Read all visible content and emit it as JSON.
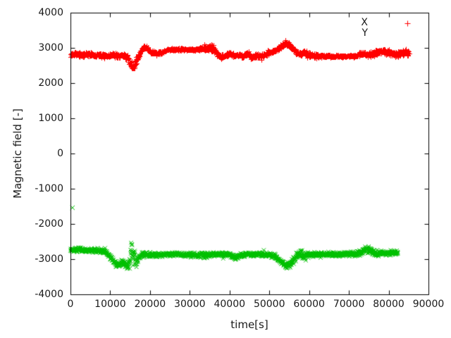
{
  "chart_data": {
    "type": "scatter",
    "title": "",
    "xlabel": "time[s]",
    "ylabel": "Magnetic field [-]",
    "xlim": [
      0,
      90000
    ],
    "ylim": [
      -4000,
      4000
    ],
    "xticks": [
      0,
      10000,
      20000,
      30000,
      40000,
      50000,
      60000,
      70000,
      80000,
      90000
    ],
    "yticks": [
      -4000,
      -3000,
      -2000,
      -1000,
      0,
      1000,
      2000,
      3000,
      4000
    ],
    "grid": false,
    "frame_color": "#000000",
    "text_color": "#1a1a1a",
    "legend_position": "top-right",
    "legend": [
      {
        "label": "X",
        "marker": "plus",
        "color": "#ff0000",
        "sample_shown": true
      },
      {
        "label": "Y",
        "marker": "cross",
        "color": "#00c000",
        "sample_shown": false
      }
    ],
    "series": [
      {
        "name": "X",
        "marker": "plus",
        "color": "#ff0000",
        "band_keypoints": [
          [
            0,
            2810,
            70
          ],
          [
            1500,
            2830,
            65
          ],
          [
            3000,
            2790,
            70
          ],
          [
            4500,
            2830,
            65
          ],
          [
            6000,
            2780,
            70
          ],
          [
            7500,
            2810,
            70
          ],
          [
            9000,
            2760,
            75
          ],
          [
            10500,
            2800,
            70
          ],
          [
            12000,
            2780,
            70
          ],
          [
            13300,
            2800,
            70
          ],
          [
            14300,
            2730,
            85
          ],
          [
            15100,
            2530,
            130
          ],
          [
            15800,
            2450,
            120
          ],
          [
            16400,
            2570,
            140
          ],
          [
            17100,
            2790,
            110
          ],
          [
            17900,
            2940,
            80
          ],
          [
            18600,
            3040,
            65
          ],
          [
            19400,
            2980,
            60
          ],
          [
            20200,
            2880,
            60
          ],
          [
            21500,
            2840,
            60
          ],
          [
            23000,
            2880,
            55
          ],
          [
            24500,
            2950,
            45
          ],
          [
            26000,
            2960,
            40
          ],
          [
            28000,
            2955,
            40
          ],
          [
            30000,
            2960,
            40
          ],
          [
            32000,
            2950,
            45
          ],
          [
            33500,
            2980,
            70
          ],
          [
            34800,
            3010,
            130
          ],
          [
            35800,
            2990,
            110
          ],
          [
            36800,
            2850,
            80
          ],
          [
            38000,
            2740,
            70
          ],
          [
            39200,
            2800,
            70
          ],
          [
            40200,
            2840,
            65
          ],
          [
            41200,
            2780,
            65
          ],
          [
            42200,
            2810,
            65
          ],
          [
            43400,
            2760,
            70
          ],
          [
            44600,
            2850,
            65
          ],
          [
            45600,
            2720,
            70
          ],
          [
            46800,
            2780,
            65
          ],
          [
            48000,
            2780,
            65
          ],
          [
            49500,
            2840,
            65
          ],
          [
            51000,
            2900,
            65
          ],
          [
            52500,
            3000,
            70
          ],
          [
            53800,
            3120,
            75
          ],
          [
            54800,
            3110,
            80
          ],
          [
            55800,
            3000,
            80
          ],
          [
            56800,
            2880,
            80
          ],
          [
            57800,
            2830,
            80
          ],
          [
            58800,
            2870,
            75
          ],
          [
            60000,
            2810,
            80
          ],
          [
            61200,
            2780,
            70
          ],
          [
            62500,
            2770,
            60
          ],
          [
            64000,
            2765,
            45
          ],
          [
            66000,
            2765,
            38
          ],
          [
            68000,
            2765,
            38
          ],
          [
            70000,
            2765,
            38
          ],
          [
            71800,
            2775,
            50
          ],
          [
            73200,
            2855,
            70
          ],
          [
            74500,
            2815,
            70
          ],
          [
            76000,
            2825,
            80
          ],
          [
            77500,
            2890,
            90
          ],
          [
            79000,
            2910,
            90
          ],
          [
            80500,
            2855,
            90
          ],
          [
            82000,
            2815,
            100
          ],
          [
            83500,
            2865,
            95
          ],
          [
            85200,
            2865,
            85
          ]
        ],
        "outliers": [
          [
            84300,
            2965
          ]
        ]
      },
      {
        "name": "Y",
        "marker": "cross",
        "color": "#00c000",
        "band_keypoints": [
          [
            0,
            -2740,
            75
          ],
          [
            2000,
            -2730,
            70
          ],
          [
            4000,
            -2740,
            70
          ],
          [
            6000,
            -2750,
            70
          ],
          [
            7500,
            -2760,
            75
          ],
          [
            9000,
            -2810,
            80
          ],
          [
            10200,
            -2960,
            90
          ],
          [
            11200,
            -3120,
            90
          ],
          [
            12200,
            -3160,
            95
          ],
          [
            13000,
            -3080,
            100
          ],
          [
            13800,
            -3160,
            100
          ],
          [
            14500,
            -3230,
            100
          ],
          [
            15200,
            -2820,
            400
          ],
          [
            15900,
            -2800,
            350
          ],
          [
            16500,
            -3130,
            180
          ],
          [
            17200,
            -2920,
            110
          ],
          [
            18000,
            -2880,
            85
          ],
          [
            20000,
            -2870,
            80
          ],
          [
            22000,
            -2880,
            75
          ],
          [
            24000,
            -2870,
            70
          ],
          [
            26000,
            -2860,
            65
          ],
          [
            28000,
            -2870,
            65
          ],
          [
            30000,
            -2880,
            70
          ],
          [
            32000,
            -2880,
            75
          ],
          [
            33800,
            -2890,
            95
          ],
          [
            35500,
            -2870,
            75
          ],
          [
            37000,
            -2860,
            70
          ],
          [
            38500,
            -2870,
            70
          ],
          [
            40000,
            -2880,
            75
          ],
          [
            41500,
            -2950,
            80
          ],
          [
            42800,
            -2880,
            75
          ],
          [
            44500,
            -2860,
            70
          ],
          [
            46000,
            -2870,
            70
          ],
          [
            48000,
            -2860,
            70
          ],
          [
            50000,
            -2880,
            70
          ],
          [
            51500,
            -2920,
            80
          ],
          [
            53000,
            -3080,
            90
          ],
          [
            54200,
            -3190,
            90
          ],
          [
            55200,
            -3170,
            95
          ],
          [
            56200,
            -3000,
            110
          ],
          [
            57200,
            -2890,
            130
          ],
          [
            58200,
            -2850,
            160
          ],
          [
            59000,
            -2920,
            130
          ],
          [
            59800,
            -2870,
            95
          ],
          [
            61000,
            -2860,
            85
          ],
          [
            63000,
            -2870,
            80
          ],
          [
            65000,
            -2860,
            75
          ],
          [
            67000,
            -2870,
            72
          ],
          [
            69000,
            -2860,
            72
          ],
          [
            71000,
            -2860,
            75
          ],
          [
            72800,
            -2830,
            90
          ],
          [
            74200,
            -2720,
            130
          ],
          [
            75300,
            -2770,
            115
          ],
          [
            76500,
            -2830,
            95
          ],
          [
            78000,
            -2840,
            85
          ],
          [
            79800,
            -2830,
            80
          ],
          [
            81200,
            -2820,
            80
          ],
          [
            82400,
            -2830,
            75
          ]
        ],
        "outliers": [
          [
            500,
            -1540
          ]
        ]
      }
    ]
  }
}
